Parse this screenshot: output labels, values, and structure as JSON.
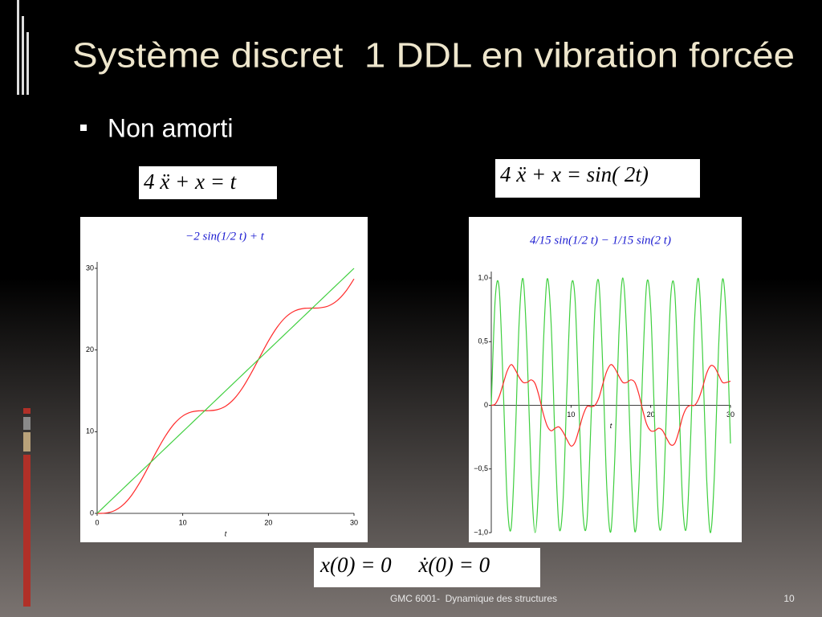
{
  "slide": {
    "title": "Système discret  1 DDL en vibration forcée",
    "bullet": "Non amorti",
    "equation_left": "4 ẍ + x = t",
    "equation_right": "4 ẍ + x = sin( 2t)",
    "initial_conditions": "x(0) = 0     ẋ(0) = 0",
    "footer": "GMC 6001-  Dynamique des structures",
    "page_number": "10"
  },
  "chart_data": [
    {
      "type": "line",
      "title": "−2 sin(1/2 t) + t",
      "xlabel": "t",
      "x": [
        0,
        1,
        2,
        3,
        4,
        5,
        6,
        7,
        8,
        9,
        10,
        11,
        12,
        13,
        14,
        15,
        16,
        17,
        18,
        19,
        20,
        21,
        22,
        23,
        24,
        25,
        26,
        27,
        28,
        29,
        30
      ],
      "series": [
        {
          "color": "#ff2a2a",
          "values": [
            0,
            0.04,
            0.32,
            1.01,
            2.18,
            3.8,
            5.72,
            7.7,
            9.51,
            10.96,
            11.92,
            12.41,
            12.56,
            12.57,
            12.69,
            13.12,
            14.02,
            15.4,
            17.18,
            19.15,
            21.09,
            22.76,
            24.0,
            24.75,
            25.07,
            25.13,
            25.16,
            25.39,
            26.02,
            27.13,
            28.7
          ]
        },
        {
          "color": "#3fcf3f",
          "values": [
            0,
            1,
            2,
            3,
            4,
            5,
            6,
            7,
            8,
            9,
            10,
            11,
            12,
            13,
            14,
            15,
            16,
            17,
            18,
            19,
            20,
            21,
            22,
            23,
            24,
            25,
            26,
            27,
            28,
            29,
            30
          ]
        }
      ],
      "xlim": [
        0,
        30
      ],
      "ylim": [
        0,
        30
      ],
      "xticks": [
        0,
        10,
        20,
        30
      ],
      "yticks": [
        0,
        10,
        20,
        30
      ]
    },
    {
      "type": "line",
      "title": "4/15 sin(1/2 t) − 1/15 sin(2 t)",
      "xlabel": "t",
      "x": [
        0,
        0.5,
        1,
        1.5,
        2,
        2.5,
        3,
        3.5,
        4,
        4.5,
        5,
        5.5,
        6,
        6.5,
        7,
        7.5,
        8,
        8.5,
        9,
        9.5,
        10,
        10.5,
        11,
        11.5,
        12,
        12.5,
        13,
        13.5,
        14,
        14.5,
        15,
        15.5,
        16,
        16.5,
        17,
        17.5,
        18,
        18.5,
        19,
        19.5,
        20,
        20.5,
        21,
        21.5,
        22,
        22.5,
        23,
        23.5,
        24,
        24.5,
        25,
        25.5,
        26,
        26.5,
        27,
        27.5,
        28,
        28.5,
        29,
        29.5,
        30
      ],
      "series": [
        {
          "color": "#3fcf3f",
          "values": [
            0,
            0.84,
            0.91,
            0.14,
            -0.76,
            -0.96,
            -0.28,
            0.66,
            0.99,
            0.41,
            -0.54,
            -1.0,
            -0.54,
            0.42,
            0.99,
            0.65,
            -0.29,
            -0.96,
            -0.75,
            0.15,
            0.91,
            0.84,
            -0.01,
            -0.85,
            -0.91,
            -0.13,
            0.76,
            0.96,
            0.27,
            -0.66,
            -0.99,
            -0.4,
            0.55,
            1.0,
            0.53,
            -0.43,
            -0.99,
            -0.64,
            0.3,
            0.96,
            0.75,
            -0.16,
            -0.92,
            -0.83,
            0.02,
            0.85,
            0.9,
            0.12,
            -0.77,
            -0.95,
            -0.26,
            0.67,
            0.99,
            0.4,
            -0.56,
            -1.0,
            -0.52,
            0.44,
            0.99,
            0.64,
            -0.3
          ]
        },
        {
          "color": "#ff2a2a",
          "values": [
            0,
            0.01,
            0.07,
            0.17,
            0.27,
            0.32,
            0.28,
            0.22,
            0.18,
            0.18,
            0.2,
            0.17,
            0.07,
            -0.06,
            -0.16,
            -0.2,
            -0.18,
            -0.17,
            -0.21,
            -0.27,
            -0.32,
            -0.29,
            -0.19,
            -0.08,
            -0.01,
            -0.01,
            0.0,
            0.06,
            0.17,
            0.27,
            0.32,
            0.29,
            0.23,
            0.18,
            0.18,
            0.2,
            0.18,
            0.09,
            -0.04,
            -0.15,
            -0.2,
            -0.2,
            -0.18,
            -0.2,
            -0.26,
            -0.31,
            -0.3,
            -0.21,
            -0.09,
            -0.02,
            0.0,
            0.0,
            0.05,
            0.14,
            0.25,
            0.31,
            0.3,
            0.24,
            0.18,
            0.18,
            0.19
          ]
        }
      ],
      "xlim": [
        0,
        30
      ],
      "ylim": [
        -1,
        1
      ],
      "xticks": [
        10,
        20,
        30
      ],
      "yticks": [
        {
          "value": 1,
          "label": "1,0"
        },
        {
          "value": 0.5,
          "label": "0,5"
        },
        0,
        {
          "value": -0.5,
          "label": "−0,5"
        },
        {
          "value": -1,
          "label": "−1,0"
        }
      ]
    }
  ]
}
